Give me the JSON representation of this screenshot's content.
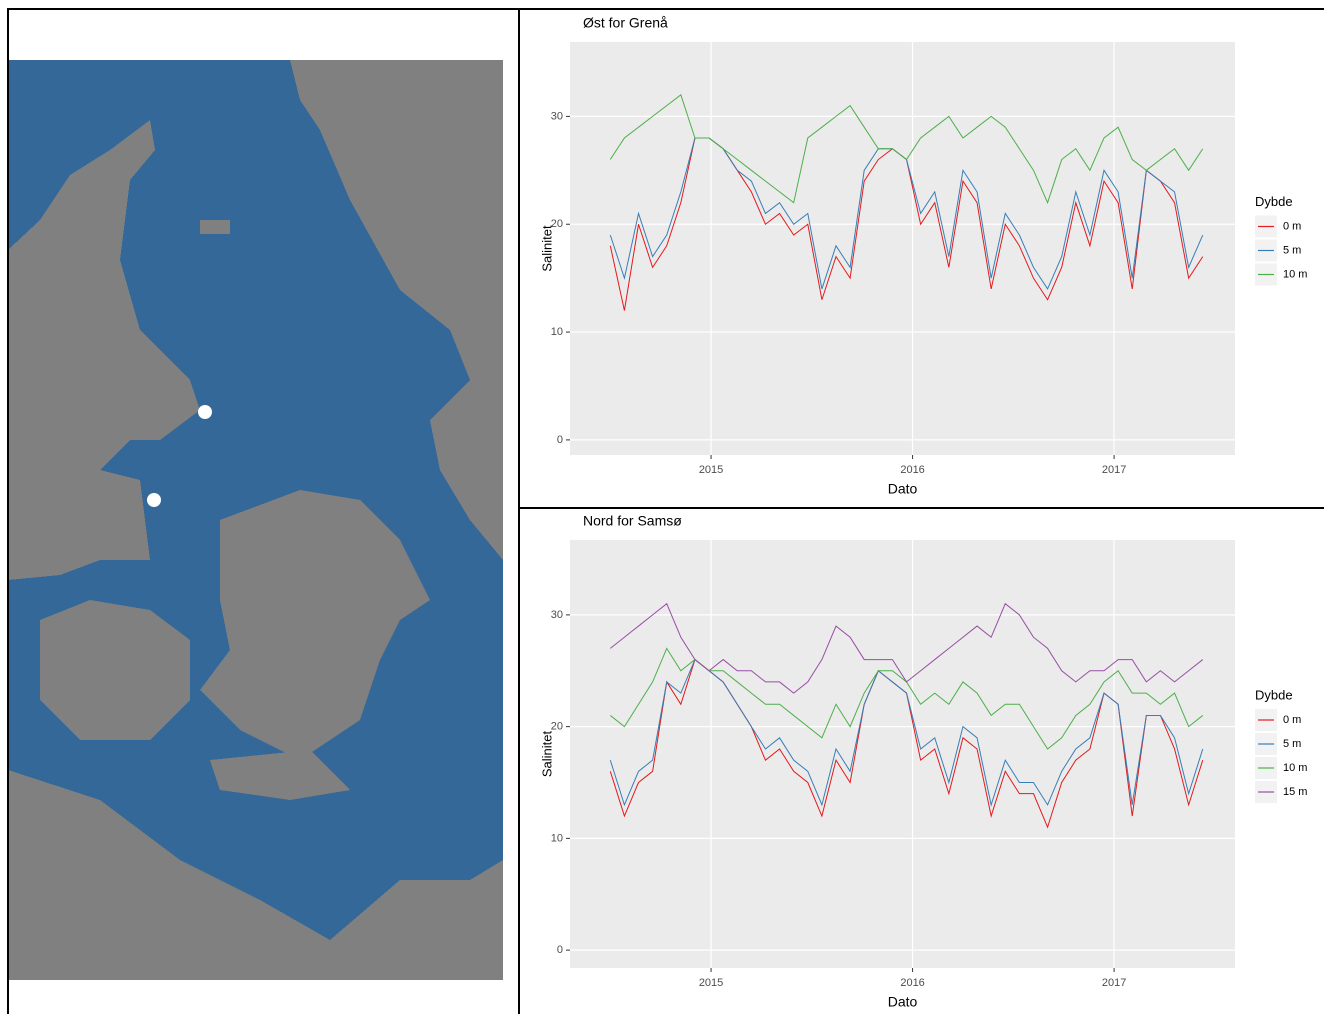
{
  "chart_data": [
    {
      "type": "line",
      "title": "Øst for Grenå",
      "x_label": "Dato",
      "y_label": "Salinitet",
      "legend_title": "Dybde",
      "legend": "right",
      "grid": true,
      "x": [
        2014.5,
        2014.57,
        2014.64,
        2014.71,
        2014.78,
        2014.85,
        2014.92,
        2014.99,
        2015.06,
        2015.13,
        2015.2,
        2015.27,
        2015.34,
        2015.41,
        2015.48,
        2015.55,
        2015.62,
        2015.69,
        2015.76,
        2015.83,
        2015.9,
        2015.97,
        2016.04,
        2016.11,
        2016.18,
        2016.25,
        2016.32,
        2016.39,
        2016.46,
        2016.53,
        2016.6,
        2016.67,
        2016.74,
        2016.81,
        2016.88,
        2016.95,
        2017.02,
        2017.09,
        2017.16,
        2017.23,
        2017.3,
        2017.37,
        2017.44
      ],
      "xlim": [
        2014.3,
        2017.6
      ],
      "xticks": [
        2015,
        2016,
        2017
      ],
      "ylim": [
        -1.4,
        36.9
      ],
      "yticks": [
        0,
        10,
        20,
        30
      ],
      "series": [
        {
          "name": "0 m",
          "color": "#e41a1c",
          "values": [
            18,
            12,
            20,
            16,
            18,
            22,
            28,
            28,
            27,
            25,
            23,
            20,
            21,
            19,
            20,
            13,
            17,
            15,
            24,
            26,
            27,
            26,
            20,
            22,
            16,
            24,
            22,
            14,
            20,
            18,
            15,
            13,
            16,
            22,
            18,
            24,
            22,
            14,
            25,
            24,
            22,
            15,
            17
          ]
        },
        {
          "name": "5 m",
          "color": "#377eb8",
          "values": [
            19,
            15,
            21,
            17,
            19,
            23,
            28,
            28,
            27,
            25,
            24,
            21,
            22,
            20,
            21,
            14,
            18,
            16,
            25,
            27,
            27,
            26,
            21,
            23,
            17,
            25,
            23,
            15,
            21,
            19,
            16,
            14,
            17,
            23,
            19,
            25,
            23,
            15,
            25,
            24,
            23,
            16,
            19
          ]
        },
        {
          "name": "10 m",
          "color": "#4daf4a",
          "values": [
            26,
            28,
            29,
            30,
            31,
            32,
            28,
            28,
            27,
            26,
            25,
            24,
            23,
            22,
            28,
            29,
            30,
            31,
            29,
            27,
            27,
            26,
            28,
            29,
            30,
            28,
            29,
            30,
            29,
            27,
            25,
            22,
            26,
            27,
            25,
            28,
            29,
            26,
            25,
            26,
            27,
            25,
            27
          ]
        }
      ]
    },
    {
      "type": "line",
      "title": "Nord for Samsø",
      "x_label": "Dato",
      "y_label": "Salinitet",
      "legend_title": "Dybde",
      "legend": "right",
      "grid": true,
      "x": [
        2014.5,
        2014.57,
        2014.64,
        2014.71,
        2014.78,
        2014.85,
        2014.92,
        2014.99,
        2015.06,
        2015.13,
        2015.2,
        2015.27,
        2015.34,
        2015.41,
        2015.48,
        2015.55,
        2015.62,
        2015.69,
        2015.76,
        2015.83,
        2015.9,
        2015.97,
        2016.04,
        2016.11,
        2016.18,
        2016.25,
        2016.32,
        2016.39,
        2016.46,
        2016.53,
        2016.6,
        2016.67,
        2016.74,
        2016.81,
        2016.88,
        2016.95,
        2017.02,
        2017.09,
        2017.16,
        2017.23,
        2017.3,
        2017.37,
        2017.44
      ],
      "xlim": [
        2014.3,
        2017.6
      ],
      "xticks": [
        2015,
        2016,
        2017
      ],
      "ylim": [
        -1.6,
        36.7
      ],
      "yticks": [
        0,
        10,
        20,
        30
      ],
      "series": [
        {
          "name": "0 m",
          "color": "#e41a1c",
          "values": [
            16,
            12,
            15,
            16,
            24,
            22,
            26,
            25,
            24,
            22,
            20,
            17,
            18,
            16,
            15,
            12,
            17,
            15,
            22,
            25,
            24,
            23,
            17,
            18,
            14,
            19,
            18,
            12,
            16,
            14,
            14,
            11,
            15,
            17,
            18,
            23,
            22,
            12,
            21,
            21,
            18,
            13,
            17
          ]
        },
        {
          "name": "5 m",
          "color": "#377eb8",
          "values": [
            17,
            13,
            16,
            17,
            24,
            23,
            26,
            25,
            24,
            22,
            20,
            18,
            19,
            17,
            16,
            13,
            18,
            16,
            22,
            25,
            24,
            23,
            18,
            19,
            15,
            20,
            19,
            13,
            17,
            15,
            15,
            13,
            16,
            18,
            19,
            23,
            22,
            13,
            21,
            21,
            19,
            14,
            18
          ]
        },
        {
          "name": "10 m",
          "color": "#4daf4a",
          "values": [
            21,
            20,
            22,
            24,
            27,
            25,
            26,
            25,
            25,
            24,
            23,
            22,
            22,
            21,
            20,
            19,
            22,
            20,
            23,
            25,
            25,
            24,
            22,
            23,
            22,
            24,
            23,
            21,
            22,
            22,
            20,
            18,
            19,
            21,
            22,
            24,
            25,
            23,
            23,
            22,
            23,
            20,
            21
          ]
        },
        {
          "name": "15 m",
          "color": "#984ea3",
          "values": [
            27,
            28,
            29,
            30,
            31,
            28,
            26,
            25,
            26,
            25,
            25,
            24,
            24,
            23,
            24,
            26,
            29,
            28,
            26,
            26,
            26,
            24,
            25,
            26,
            27,
            28,
            29,
            28,
            31,
            30,
            28,
            27,
            25,
            24,
            25,
            25,
            26,
            26,
            24,
            25,
            24,
            25,
            26
          ]
        }
      ]
    }
  ]
}
